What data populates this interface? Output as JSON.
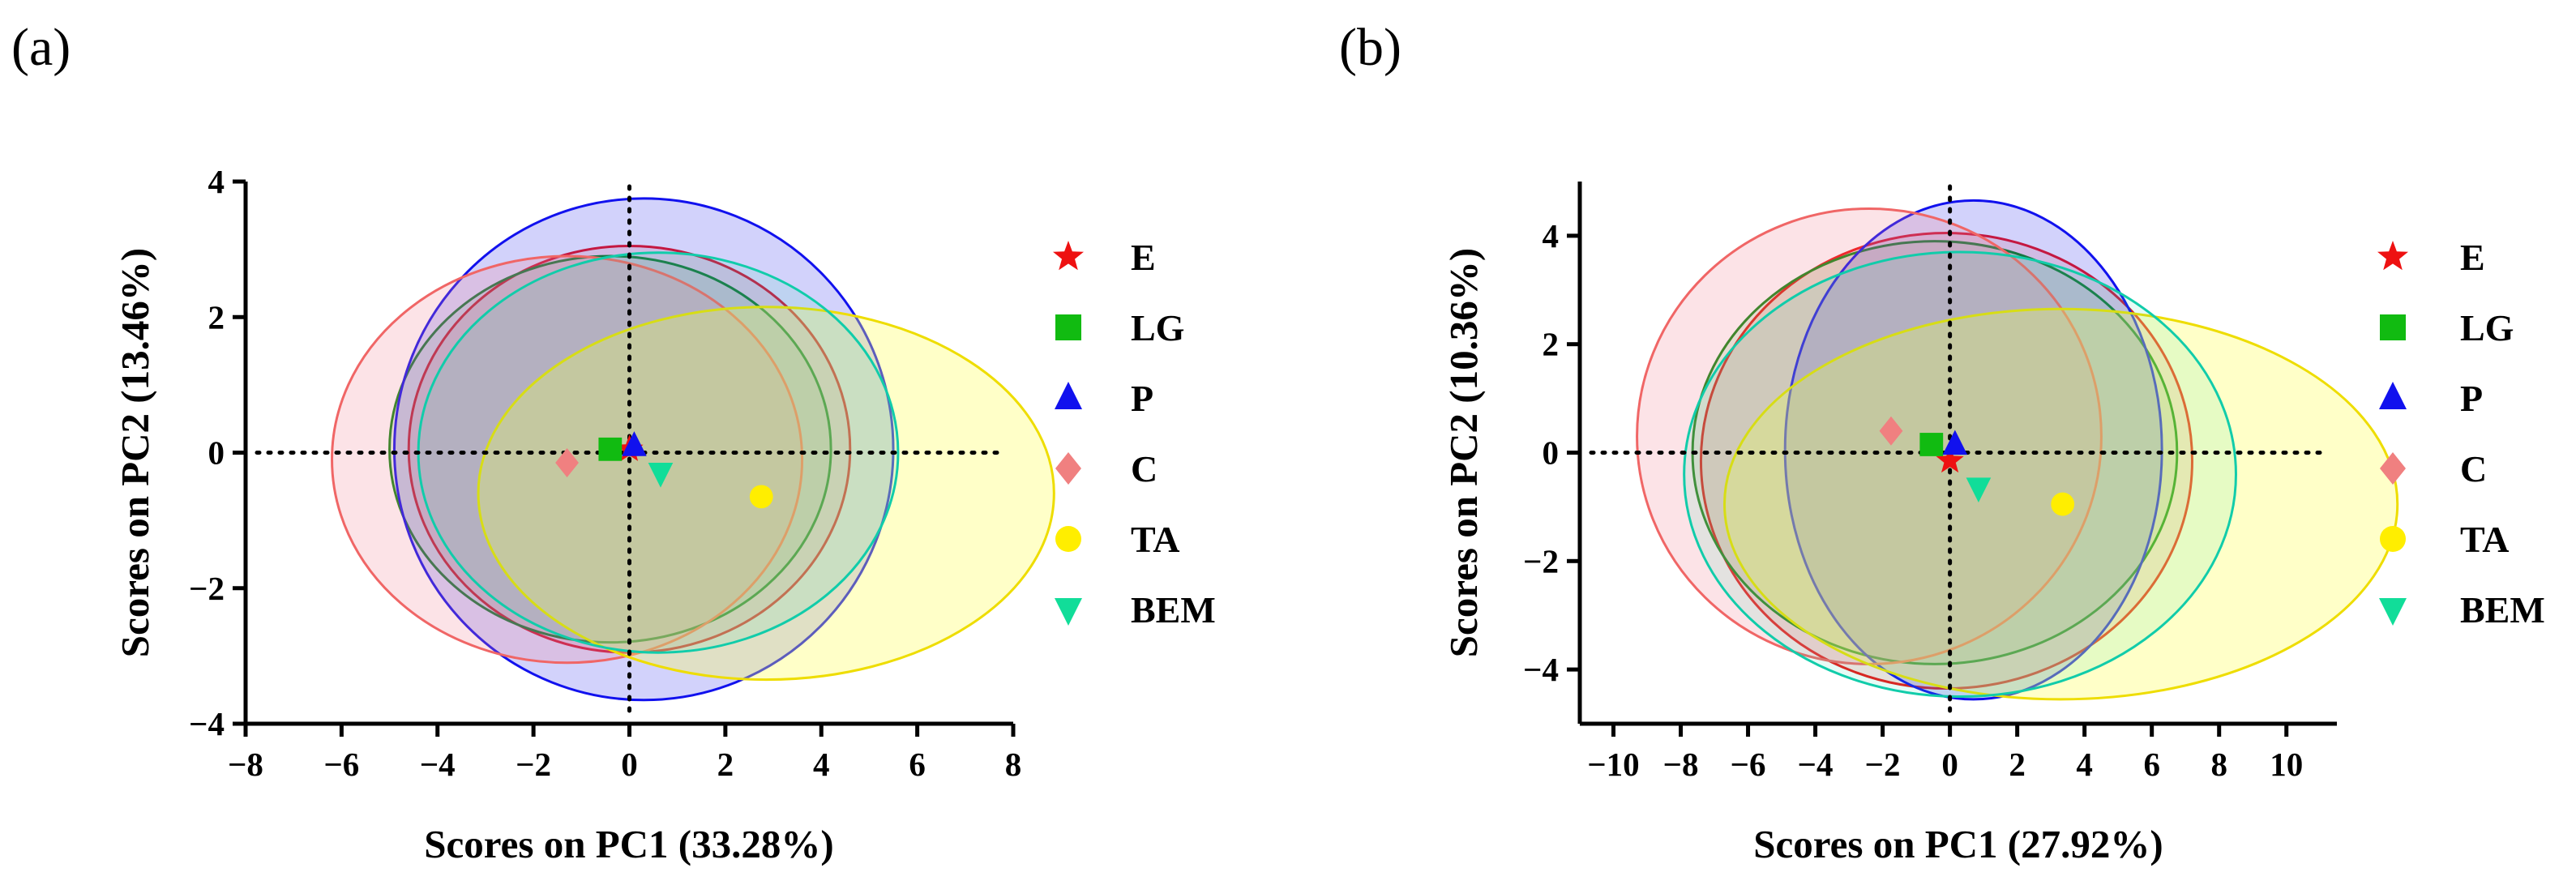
{
  "chart_data": [
    {
      "panel_label": "(a)",
      "type": "scatter",
      "xlabel": "Scores on PC1 (33.28%)",
      "ylabel": "Scores on PC2 (13.46%)",
      "xlim": [
        -8,
        8
      ],
      "ylim": [
        -4,
        4
      ],
      "xticks": [
        -8,
        -6,
        -4,
        -2,
        0,
        2,
        4,
        6,
        8
      ],
      "yticks": [
        -4,
        -2,
        0,
        2,
        4
      ],
      "xtick_labels": [
        "−8",
        "−6",
        "−4",
        "−2",
        "0",
        "2",
        "4",
        "6",
        "8"
      ],
      "ytick_labels": [
        "−4",
        "−2",
        "0",
        "2",
        "4"
      ],
      "reference_lines": "dotted lines at x=0 and y=0",
      "legend_position": "right",
      "series": [
        {
          "name": "E",
          "marker": "star",
          "color": "#ee1111",
          "x": 0.0,
          "y": 0.05,
          "ellipse": {
            "cx": 0.0,
            "cy": 0.05,
            "rx": 4.6,
            "ry": 3.0,
            "fill": "#ee2222",
            "fill_opacity": 0.13,
            "stroke": "#ee1111"
          }
        },
        {
          "name": "LG",
          "marker": "square",
          "color": "#11bb11",
          "x": -0.4,
          "y": 0.05,
          "ellipse": {
            "cx": -0.4,
            "cy": 0.05,
            "rx": 4.6,
            "ry": 2.85,
            "fill": "#22aa22",
            "fill_opacity": 0.12,
            "stroke": "#118811"
          }
        },
        {
          "name": "P",
          "marker": "triangle-up",
          "color": "#1111ee",
          "x": 0.1,
          "y": 0.1,
          "ellipse": {
            "cx": 0.3,
            "cy": 0.05,
            "rx": 5.2,
            "ry": 3.7,
            "fill": "#3333ee",
            "fill_opacity": 0.22,
            "stroke": "#1111ee"
          }
        },
        {
          "name": "C",
          "marker": "diamond",
          "color": "#f08080",
          "x": -1.3,
          "y": -0.15,
          "ellipse": {
            "cx": -1.3,
            "cy": -0.1,
            "rx": 4.9,
            "ry": 3.0,
            "fill": "#f08090",
            "fill_opacity": 0.22,
            "stroke": "#f06666"
          }
        },
        {
          "name": "TA",
          "marker": "circle",
          "color": "#ffee00",
          "x": 2.75,
          "y": -0.65,
          "ellipse": {
            "cx": 2.85,
            "cy": -0.6,
            "rx": 6.0,
            "ry": 2.75,
            "fill": "#ffff55",
            "fill_opacity": 0.32,
            "stroke": "#eedd00"
          }
        },
        {
          "name": "BEM",
          "marker": "triangle-down",
          "color": "#11dd99",
          "x": 0.65,
          "y": -0.3,
          "ellipse": {
            "cx": 0.6,
            "cy": 0.0,
            "rx": 5.0,
            "ry": 2.95,
            "fill": "#33ddaa",
            "fill_opacity": 0.12,
            "stroke": "#11ccaa"
          }
        }
      ]
    },
    {
      "panel_label": "(b)",
      "type": "scatter",
      "xlabel": "Scores on PC1 (27.92%)",
      "ylabel": "Scores on PC2 (10.36%)",
      "xlim": [
        -11,
        11.5
      ],
      "ylim": [
        -5,
        5
      ],
      "xticks": [
        -10,
        -8,
        -6,
        -4,
        -2,
        0,
        2,
        4,
        6,
        8,
        10
      ],
      "yticks": [
        -4,
        -2,
        0,
        2,
        4
      ],
      "xtick_labels": [
        "−10",
        "−8",
        "−6",
        "−4",
        "−2",
        "0",
        "2",
        "4",
        "6",
        "8",
        "10"
      ],
      "ytick_labels": [
        "−4",
        "−2",
        "0",
        "2",
        "4"
      ],
      "reference_lines": "dotted lines at x=0 and y=0",
      "legend_position": "right",
      "series": [
        {
          "name": "E",
          "marker": "star",
          "color": "#ee1111",
          "x": 0.0,
          "y": -0.15,
          "ellipse": {
            "cx": -0.1,
            "cy": -0.15,
            "rx": 7.3,
            "ry": 4.2,
            "fill": "#ee2222",
            "fill_opacity": 0.13,
            "stroke": "#ee1111"
          }
        },
        {
          "name": "LG",
          "marker": "square",
          "color": "#11bb11",
          "x": -0.55,
          "y": 0.15,
          "ellipse": {
            "cx": -0.45,
            "cy": 0.0,
            "rx": 7.2,
            "ry": 3.9,
            "fill": "#22aa22",
            "fill_opacity": 0.12,
            "stroke": "#118811"
          }
        },
        {
          "name": "P",
          "marker": "triangle-up",
          "color": "#1111ee",
          "x": 0.15,
          "y": 0.15,
          "ellipse": {
            "cx": 0.7,
            "cy": 0.05,
            "rx": 5.6,
            "ry": 4.6,
            "fill": "#3333ee",
            "fill_opacity": 0.22,
            "stroke": "#1111ee"
          }
        },
        {
          "name": "C",
          "marker": "diamond",
          "color": "#f08080",
          "x": -1.75,
          "y": 0.4,
          "ellipse": {
            "cx": -2.4,
            "cy": 0.3,
            "rx": 6.9,
            "ry": 4.2,
            "fill": "#f08090",
            "fill_opacity": 0.22,
            "stroke": "#f06666"
          }
        },
        {
          "name": "TA",
          "marker": "circle",
          "color": "#ffee00",
          "x": 3.35,
          "y": -0.95,
          "ellipse": {
            "cx": 3.3,
            "cy": -0.95,
            "rx": 10.0,
            "ry": 3.6,
            "fill": "#ffff55",
            "fill_opacity": 0.32,
            "stroke": "#eedd00"
          }
        },
        {
          "name": "BEM",
          "marker": "triangle-down",
          "color": "#11dd99",
          "x": 0.85,
          "y": -0.65,
          "ellipse": {
            "cx": 0.3,
            "cy": -0.4,
            "rx": 8.2,
            "ry": 4.1,
            "fill": "#33ddaa",
            "fill_opacity": 0.12,
            "stroke": "#11ccaa"
          }
        }
      ]
    }
  ]
}
